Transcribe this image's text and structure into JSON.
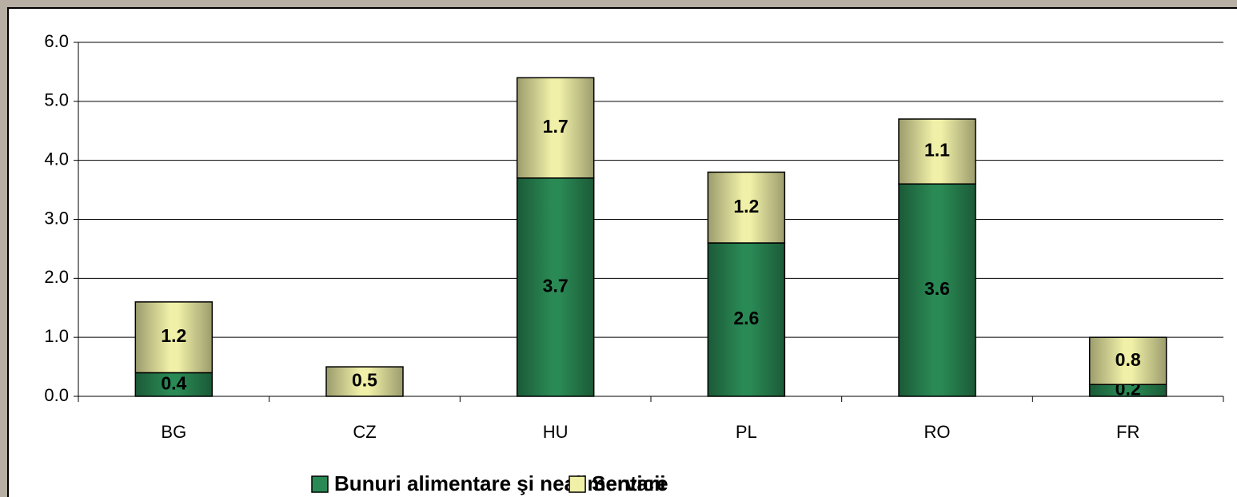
{
  "chart_data": {
    "type": "stacked_bar",
    "categories": [
      "BG",
      "CZ",
      "HU",
      "PL",
      "RO",
      "FR"
    ],
    "series": [
      {
        "name": "Bunuri alimentare şi nealimentare",
        "color": "#2a8a55",
        "values": [
          0.4,
          null,
          3.7,
          2.6,
          3.6,
          0.2
        ]
      },
      {
        "name": "Servicii",
        "color": "#f0f0a8",
        "values": [
          1.2,
          0.5,
          1.7,
          1.2,
          1.1,
          0.8
        ]
      }
    ],
    "ylim": [
      0,
      6
    ],
    "yticks": [
      {
        "value": 0,
        "label": "0.0"
      },
      {
        "value": 1,
        "label": "1.0"
      },
      {
        "value": 2,
        "label": "2.0"
      },
      {
        "value": 3,
        "label": "3.0"
      },
      {
        "value": 4,
        "label": "4.0"
      },
      {
        "value": 5,
        "label": "5.0"
      },
      {
        "value": 6,
        "label": "6.0"
      }
    ],
    "grid": true,
    "legend": "bottom"
  }
}
